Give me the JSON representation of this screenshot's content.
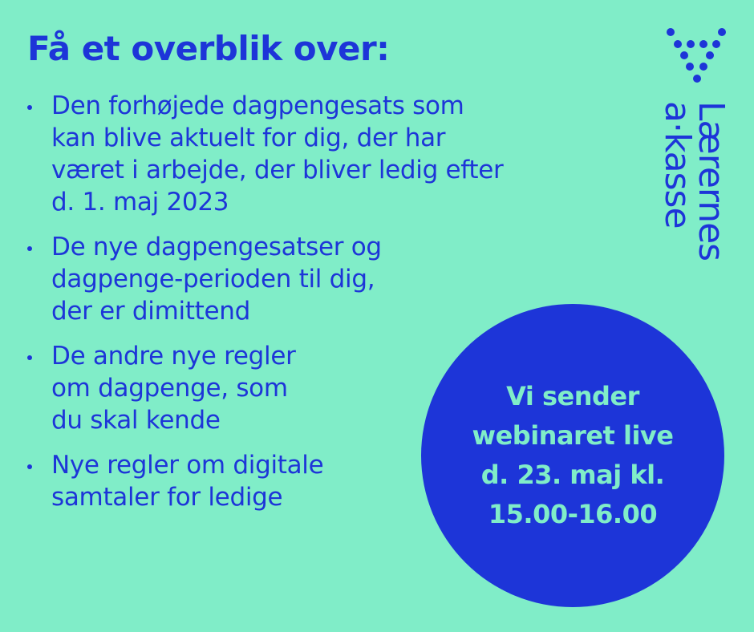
{
  "heading": "Få et overblik over:",
  "bullets": [
    {
      "text": "Den forhøjede dagpengesats som\nkan blive aktuelt for dig, der har\nværet i arbejde, der bliver ledig efter\nd. 1. maj 2023"
    },
    {
      "text": "De nye dagpengesatser og\ndagpenge-perioden til dig,\nder er dimittend"
    },
    {
      "text": "De andre nye regler\nom dagpenge, som\ndu skal kende"
    },
    {
      "text": "Nye regler om digitale\nsamtaler for ledige"
    }
  ],
  "badge": {
    "text": "Vi sender\nwebinaret live\nd. 23. maj kl.\n15.00-16.00"
  },
  "logo": {
    "line1": "Lærernes",
    "line2": "a·kasse"
  },
  "colors": {
    "background": "#80edc8",
    "brand_blue": "#1d35d8"
  }
}
